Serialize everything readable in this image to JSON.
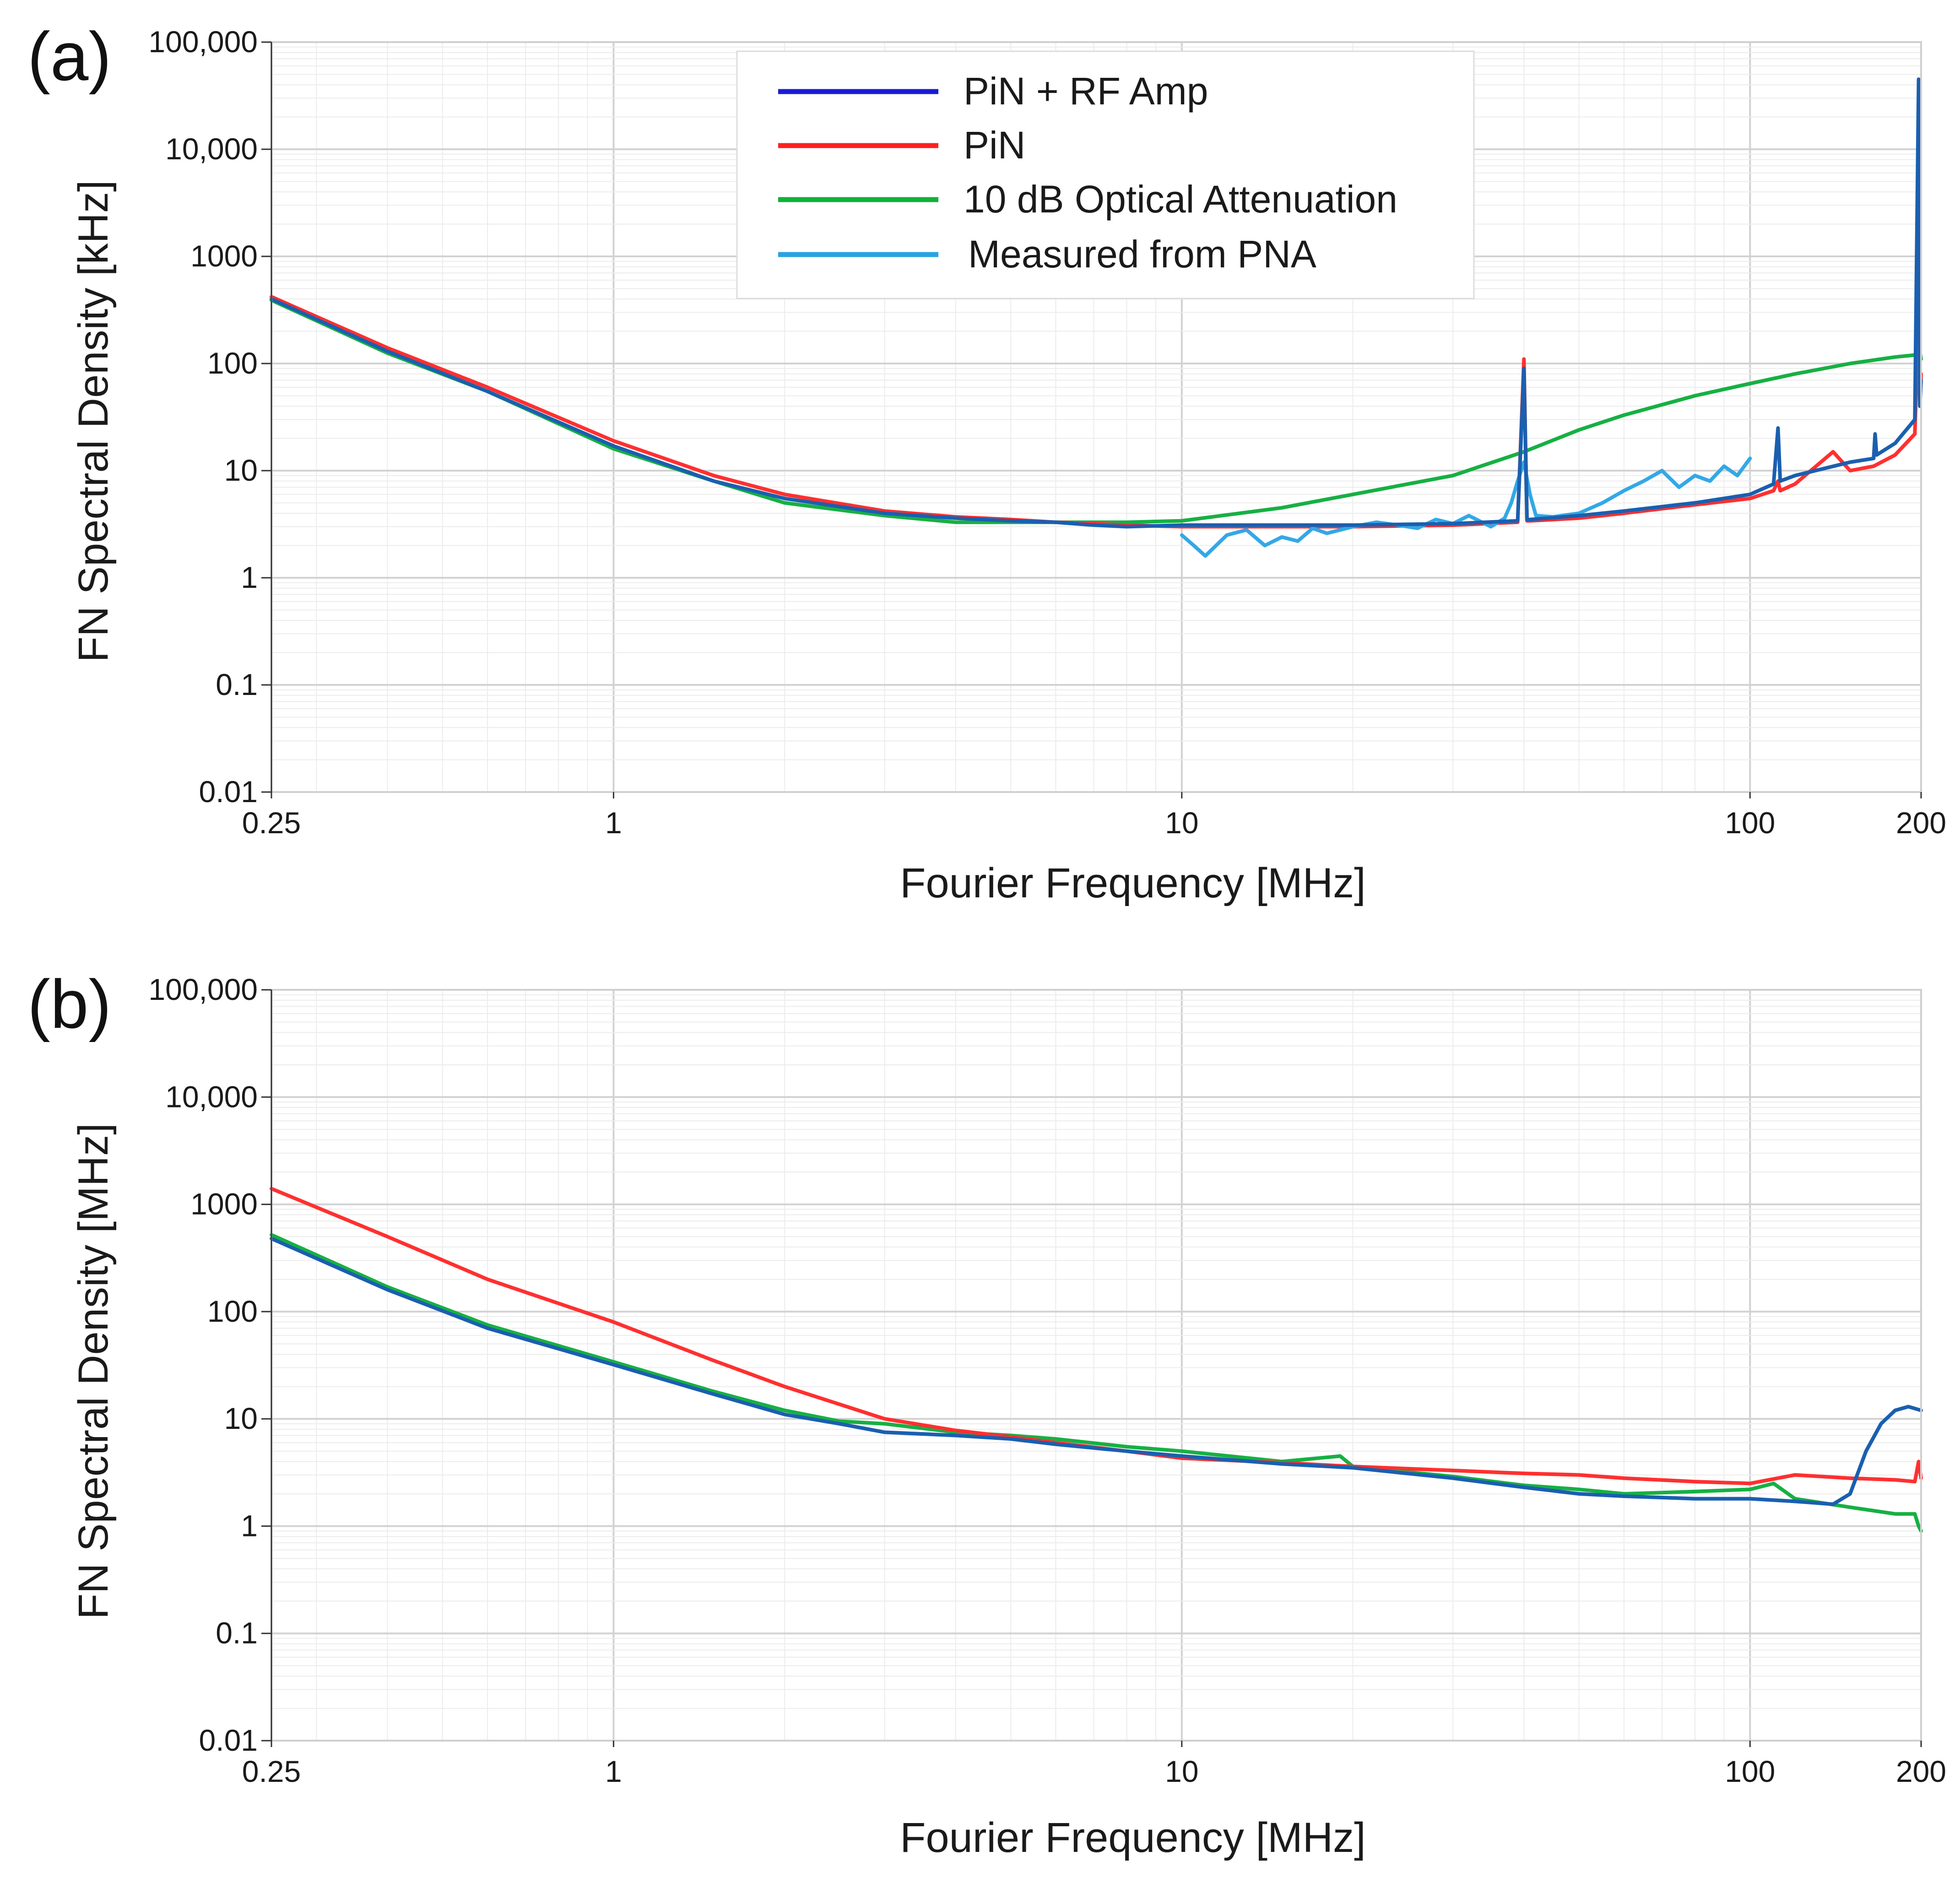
{
  "figure": {
    "panels": [
      {
        "panel_label": "(a)",
        "xlabel": "Fourier Frequency [MHz]",
        "ylabel": "FN Spectral Density [kHz]",
        "x_ticks": [
          "0.25",
          "1",
          "10",
          "100",
          "200"
        ],
        "y_ticks": [
          "100,000",
          "10,000",
          "1000",
          "100",
          "10",
          "1",
          "0.1",
          "0.01"
        ],
        "legend": [
          {
            "label": "PiN + RF Amp",
            "color": "#1a1ad6"
          },
          {
            "label": "PiN",
            "color": "#ff2020"
          },
          {
            "label": "10 dB Optical Attenuation",
            "color": "#12b03a"
          },
          {
            "label": "Measured from PNA",
            "color": "#29a3e0"
          }
        ]
      },
      {
        "panel_label": "(b)",
        "xlabel": "Fourier Frequency [MHz]",
        "ylabel": "FN Spectral Density [MHz]",
        "x_ticks": [
          "0.25",
          "1",
          "10",
          "100",
          "200"
        ],
        "y_ticks": [
          "100,000",
          "10,000",
          "1000",
          "100",
          "10",
          "1",
          "0.1",
          "0.01"
        ]
      }
    ]
  },
  "chart_data": [
    {
      "type": "line",
      "xlabel": "Fourier Frequency [MHz]",
      "ylabel": "FN Spectral Density [kHz]",
      "x_scale": "log",
      "y_scale": "log",
      "xlim": [
        0.25,
        200
      ],
      "ylim": [
        0.01,
        100000
      ],
      "grid": true,
      "legend_position": "top-center",
      "series": [
        {
          "name": "PiN + RF Amp",
          "color": "#1a5fb0",
          "x": [
            0.25,
            0.4,
            0.6,
            1,
            1.5,
            2,
            3,
            4,
            5,
            6,
            7,
            8,
            10,
            15,
            20,
            30,
            39,
            40,
            40.5,
            41,
            50,
            60,
            80,
            100,
            110,
            112,
            113,
            120,
            150,
            165,
            166,
            167,
            180,
            195,
            198,
            199,
            200
          ],
          "y": [
            400,
            130,
            55,
            17,
            8,
            5.5,
            4,
            3.6,
            3.4,
            3.3,
            3.1,
            3,
            3.1,
            3.1,
            3.1,
            3.2,
            3.4,
            90,
            3.5,
            3.5,
            3.8,
            4.2,
            5,
            6,
            7.5,
            25,
            8,
            9,
            12,
            13,
            22,
            14,
            18,
            30,
            45000,
            40,
            70
          ]
        },
        {
          "name": "PiN",
          "color": "#ff3030",
          "x": [
            0.25,
            0.4,
            0.6,
            1,
            1.5,
            2,
            3,
            4,
            5,
            6,
            7,
            8,
            10,
            15,
            20,
            30,
            39,
            40,
            40.5,
            41,
            50,
            60,
            80,
            100,
            110,
            112,
            113,
            120,
            140,
            150,
            165,
            180,
            195,
            198,
            199,
            200
          ],
          "y": [
            420,
            140,
            60,
            19,
            9,
            6,
            4.2,
            3.7,
            3.5,
            3.3,
            3.2,
            3.1,
            3,
            3,
            3,
            3.1,
            3.3,
            110,
            3.4,
            3.4,
            3.6,
            4,
            4.8,
            5.5,
            6.5,
            8,
            6.5,
            7.5,
            15,
            10,
            11,
            14,
            22,
            300,
            40,
            80
          ]
        },
        {
          "name": "10 dB Optical Attenuation",
          "color": "#17b043",
          "x": [
            0.25,
            0.4,
            0.6,
            1,
            1.5,
            2,
            3,
            4,
            5,
            6,
            8,
            10,
            15,
            20,
            30,
            40,
            50,
            60,
            80,
            100,
            120,
            150,
            180,
            195,
            198,
            200
          ],
          "y": [
            390,
            125,
            55,
            16,
            8,
            5,
            3.8,
            3.3,
            3.3,
            3.3,
            3.3,
            3.4,
            4.5,
            6,
            9,
            15,
            24,
            33,
            50,
            65,
            80,
            100,
            115,
            120,
            150,
            110
          ]
        },
        {
          "name": "Measured from PNA",
          "color": "#33a8e6",
          "x": [
            10,
            10.5,
            11,
            12,
            13,
            14,
            15,
            16,
            17,
            18,
            20,
            22,
            24,
            26,
            28,
            30,
            32,
            35,
            37,
            38,
            39,
            40,
            41,
            42,
            45,
            50,
            55,
            60,
            65,
            70,
            75,
            80,
            85,
            90,
            95,
            100
          ],
          "y": [
            2.5,
            2.0,
            1.6,
            2.5,
            2.8,
            2.0,
            2.4,
            2.2,
            2.9,
            2.6,
            3.0,
            3.3,
            3.1,
            2.9,
            3.5,
            3.2,
            3.8,
            3.0,
            3.6,
            5.0,
            8.0,
            12,
            6.0,
            3.8,
            3.7,
            4.0,
            5.0,
            6.5,
            8.0,
            10,
            7.0,
            9.0,
            8.0,
            11,
            9.0,
            13
          ]
        }
      ]
    },
    {
      "type": "line",
      "xlabel": "Fourier Frequency [MHz]",
      "ylabel": "FN Spectral Density [MHz]",
      "x_scale": "log",
      "y_scale": "log",
      "xlim": [
        0.25,
        200
      ],
      "ylim": [
        0.01,
        100000
      ],
      "grid": true,
      "series": [
        {
          "name": "PiN + RF Amp",
          "color": "#1a5fb0",
          "x": [
            0.25,
            0.4,
            0.6,
            1,
            1.5,
            2,
            2.5,
            3,
            4,
            5,
            6,
            8,
            10,
            15,
            20,
            30,
            40,
            50,
            60,
            80,
            100,
            120,
            140,
            150,
            160,
            170,
            180,
            190,
            200
          ],
          "y": [
            480,
            160,
            70,
            32,
            17,
            11,
            9,
            7.5,
            7,
            6.5,
            5.8,
            5,
            4.5,
            3.8,
            3.5,
            2.8,
            2.3,
            2.0,
            1.9,
            1.8,
            1.8,
            1.7,
            1.6,
            2.0,
            5,
            9,
            12,
            13,
            12
          ]
        },
        {
          "name": "PiN",
          "color": "#ff3030",
          "x": [
            0.25,
            0.4,
            0.6,
            1,
            1.5,
            2,
            3,
            4,
            5,
            6,
            8,
            10,
            15,
            20,
            30,
            40,
            50,
            60,
            80,
            100,
            120,
            150,
            180,
            195,
            198,
            200
          ],
          "y": [
            1400,
            500,
            200,
            80,
            35,
            20,
            10,
            7.8,
            6.8,
            6,
            5,
            4.3,
            3.9,
            3.6,
            3.3,
            3.1,
            3.0,
            2.8,
            2.6,
            2.5,
            3.0,
            2.8,
            2.7,
            2.6,
            4.0,
            2.8
          ]
        },
        {
          "name": "10 dB Optical Attenuation",
          "color": "#17b043",
          "x": [
            0.25,
            0.4,
            0.6,
            1,
            1.5,
            2,
            2.5,
            3,
            4,
            5,
            6,
            8,
            10,
            15,
            19,
            20,
            30,
            40,
            50,
            60,
            80,
            100,
            110,
            120,
            150,
            180,
            195,
            198,
            200
          ],
          "y": [
            520,
            170,
            75,
            34,
            18,
            12,
            9.5,
            9,
            7.5,
            7,
            6.5,
            5.5,
            5,
            4,
            4.5,
            3.6,
            2.9,
            2.4,
            2.2,
            2.0,
            2.1,
            2.2,
            2.5,
            1.8,
            1.5,
            1.3,
            1.3,
            1.0,
            0.9
          ]
        }
      ]
    }
  ]
}
